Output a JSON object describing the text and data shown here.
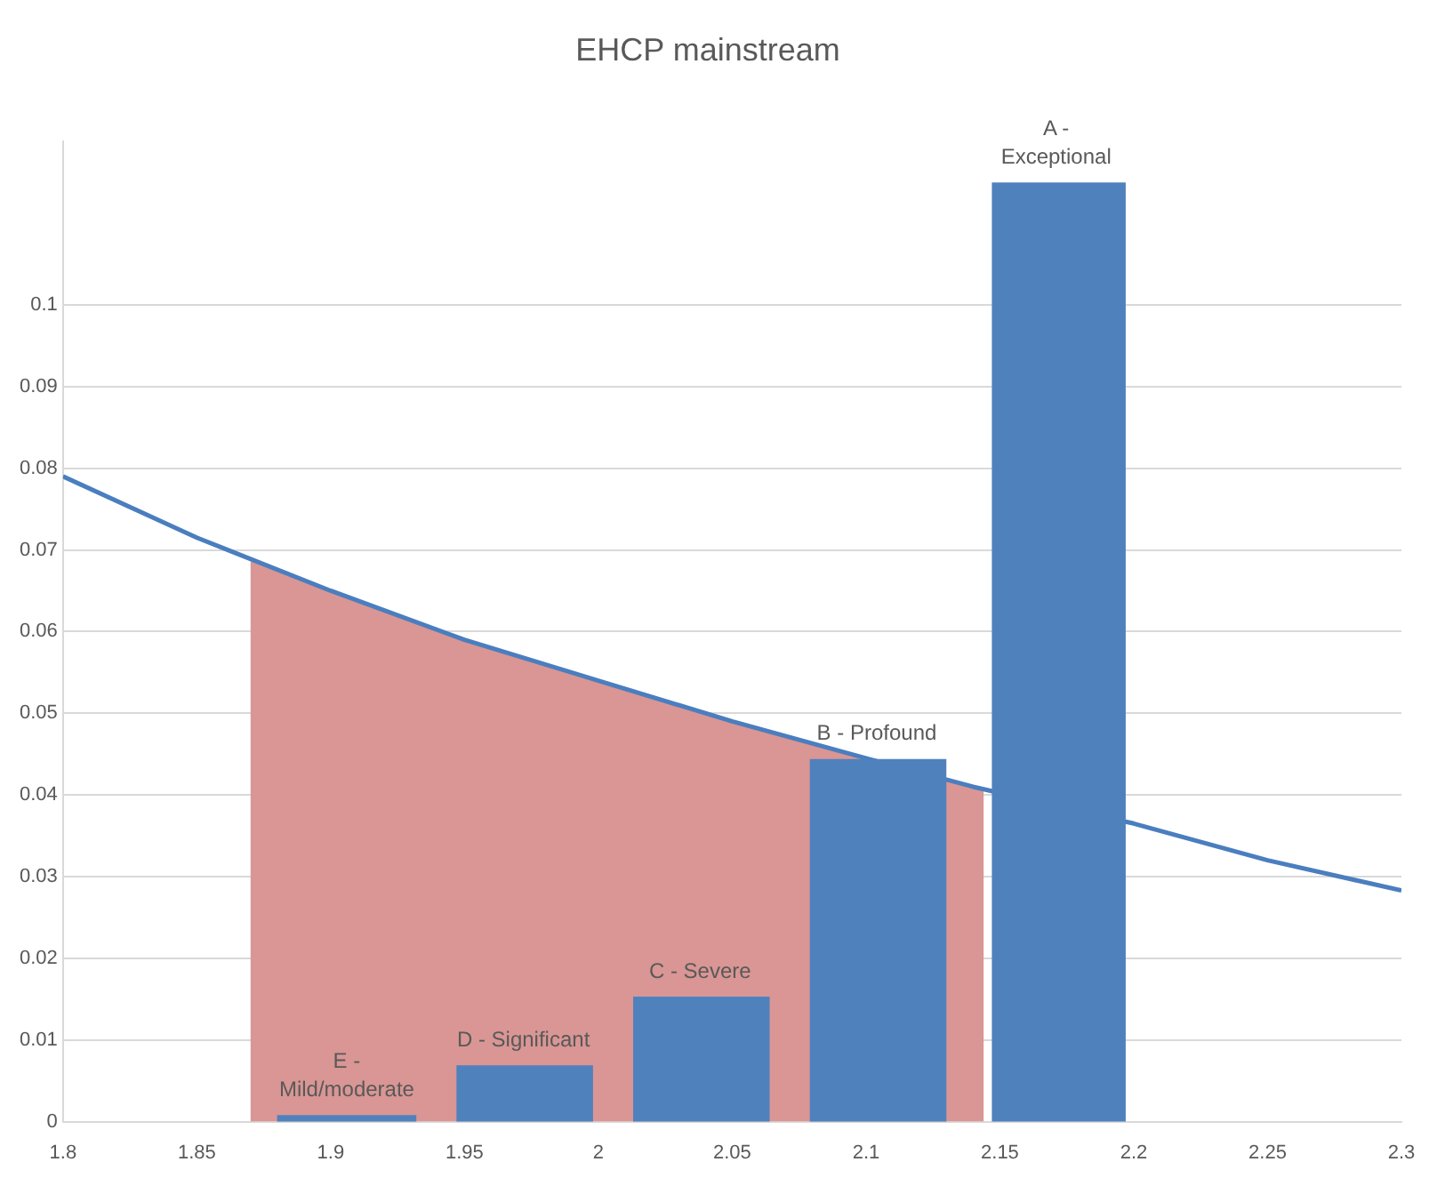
{
  "chart_data": {
    "type": "histogram",
    "title": "EHCP mainstream",
    "xlim": [
      1.8,
      2.3
    ],
    "xticks": [
      1.8,
      1.85,
      1.9,
      1.95,
      2,
      2.05,
      2.1,
      2.15,
      2.2,
      2.25,
      2.3
    ],
    "ylim": [
      0,
      0.12
    ],
    "yticks": [
      0,
      0.01,
      0.02,
      0.03,
      0.04,
      0.05,
      0.06,
      0.07,
      0.08,
      0.09,
      0.1
    ],
    "grid": "y",
    "legend": false,
    "series": [
      {
        "type": "area",
        "color": "#d99694",
        "x": [
          1.87,
          1.9,
          1.95,
          2,
          2.05,
          2.1,
          2.144
        ],
        "values": [
          0.069,
          0.065,
          0.059,
          0.054,
          0.049,
          0.0445,
          0.0405
        ]
      },
      {
        "type": "line",
        "color": "#4a7ebf",
        "x": [
          1.8,
          1.85,
          1.9,
          1.95,
          2,
          2.05,
          2.1,
          2.14,
          2.2,
          2.25,
          2.3
        ],
        "values": [
          0.079,
          0.0715,
          0.065,
          0.059,
          0.054,
          0.049,
          0.0445,
          0.041,
          0.0365,
          0.032,
          0.0283
        ]
      },
      {
        "color": "#4f81bd",
        "bins": [
          1.88,
          1.932,
          1.947,
          1.998,
          2.013,
          2.064,
          2.079,
          2.13,
          2.147,
          2.197
        ],
        "values": [
          0.0008,
          null,
          0.0069,
          null,
          0.0153,
          null,
          0.0444,
          null,
          0.115
        ]
      }
    ],
    "annotations": [
      {
        "text": "E - Mild/moderate",
        "x": 1.906,
        "y": 0.0008
      },
      {
        "text": "D - Significant",
        "x": 1.972,
        "y": 0.0069
      },
      {
        "text": "C - Severe",
        "x": 2.038,
        "y": 0.0153
      },
      {
        "text": "B - Profound",
        "x": 2.104,
        "y": 0.0444
      },
      {
        "text": "A - Exceptional",
        "x": 2.171,
        "y": 0.115
      }
    ]
  }
}
